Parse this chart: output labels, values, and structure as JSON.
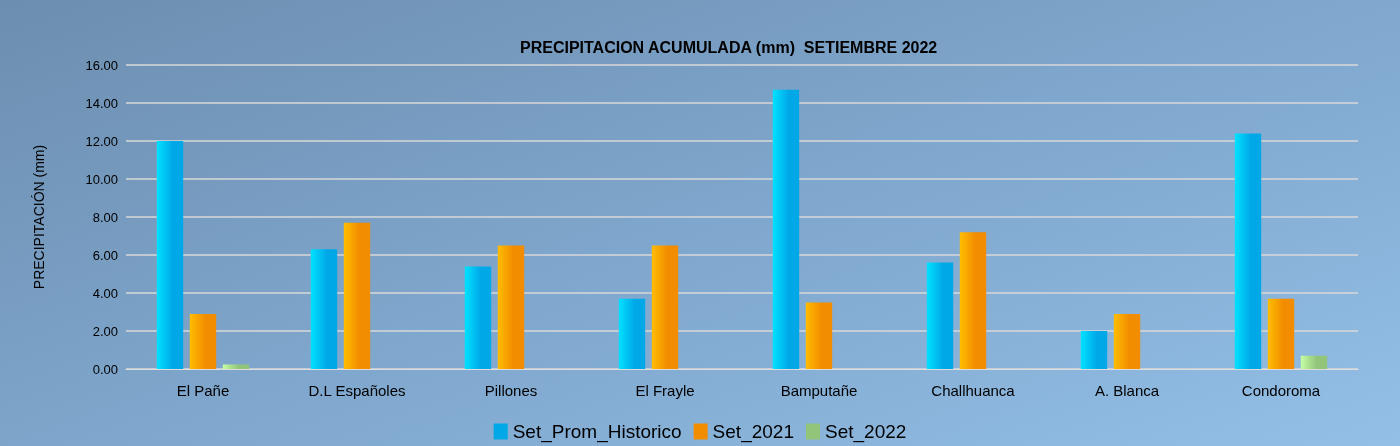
{
  "chart_data": {
    "type": "bar",
    "title": "PRECIPITACION ACUMULADA (mm)  SETIEMBRE 2022",
    "ylabel": "PRECIPITACIÓN (mm)",
    "categories": [
      "El Pañe",
      "D.L Españoles",
      "Pillones",
      "El Frayle",
      "Bamputañe",
      "Challhuanca",
      "A. Blanca",
      "Condoroma"
    ],
    "series": [
      {
        "name": "Set_Prom_Historico",
        "color": "#00a8e8",
        "values": [
          12.0,
          6.3,
          5.4,
          3.7,
          14.7,
          5.6,
          2.0,
          12.4
        ]
      },
      {
        "name": "Set_2021",
        "color": "#f28c00",
        "values": [
          2.9,
          7.7,
          6.5,
          6.5,
          3.5,
          7.2,
          2.9,
          3.7
        ]
      },
      {
        "name": "Set_2022",
        "color": "#92c47a",
        "values": [
          0.24,
          0,
          0,
          0,
          0,
          0,
          0,
          0.7
        ]
      }
    ],
    "ylim": [
      0,
      16
    ],
    "yticks": [
      {
        "value": 0,
        "label": "0.00"
      },
      {
        "value": 2,
        "label": "2.00"
      },
      {
        "value": 4,
        "label": "4.00"
      },
      {
        "value": 6,
        "label": "6.00"
      },
      {
        "value": 8,
        "label": "8.00"
      },
      {
        "value": 10,
        "label": "10.00"
      },
      {
        "value": 12,
        "label": "12.00"
      },
      {
        "value": 14,
        "label": "14.00"
      },
      {
        "value": 16,
        "label": "16.00"
      }
    ],
    "grid": "y",
    "legend": "bottom"
  }
}
